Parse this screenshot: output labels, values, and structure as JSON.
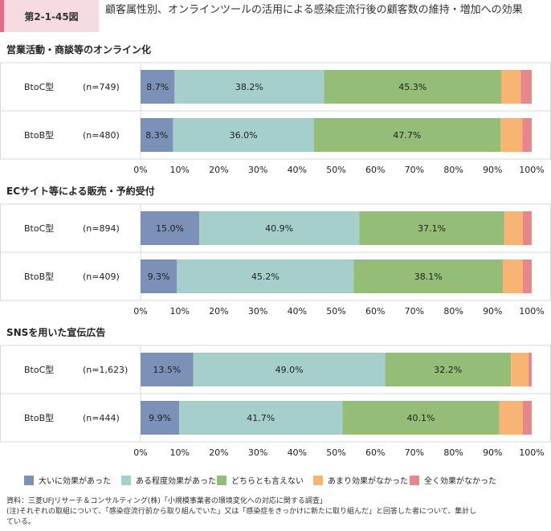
{
  "header": {
    "figure_no": "第2-1-45図",
    "title": "顧客属性別、オンラインツールの活用による感染症流行後の顧客数の維持・増加への効果"
  },
  "colors": [
    "#7b91b8",
    "#a6cfcb",
    "#94bd78",
    "#f7b473",
    "#e7868b"
  ],
  "chart_data": {
    "type": "bar",
    "orientation": "horizontal-stacked-100",
    "xlim": [
      0,
      100
    ],
    "xticks": [
      "0%",
      "10%",
      "20%",
      "30%",
      "40%",
      "50%",
      "60%",
      "70%",
      "80%",
      "90%",
      "100%"
    ],
    "legend": [
      "大いに効果があった",
      "ある程度効果があった",
      "どちらとも言えない",
      "あまり効果がなかった",
      "全く効果がなかった"
    ],
    "panels": [
      {
        "title": "営業活動・商談等のオンライン化",
        "rows": [
          {
            "label": "BtoC型",
            "n": "(n=749)",
            "values": [
              8.7,
              38.2,
              45.3,
              5.0,
              2.8
            ]
          },
          {
            "label": "BtoB型",
            "n": "(n=480)",
            "values": [
              8.3,
              36.0,
              47.7,
              5.6,
              2.4
            ]
          }
        ]
      },
      {
        "title": "ECサイト等による販売・予約受付",
        "rows": [
          {
            "label": "BtoC型",
            "n": "(n=894)",
            "values": [
              15.0,
              40.9,
              37.1,
              4.7,
              2.3
            ]
          },
          {
            "label": "BtoB型",
            "n": "(n=409)",
            "values": [
              9.3,
              45.2,
              38.1,
              5.1,
              2.3
            ]
          }
        ]
      },
      {
        "title": "SNSを用いた宣伝広告",
        "rows": [
          {
            "label": "BtoC型",
            "n": "(n=1,623)",
            "values": [
              13.5,
              49.0,
              32.2,
              4.5,
              0.8
            ]
          },
          {
            "label": "BtoB型",
            "n": "(n=444)",
            "values": [
              9.9,
              41.7,
              40.1,
              6.0,
              2.3
            ]
          }
        ]
      }
    ]
  },
  "footnotes": {
    "source": "資料：三菱UFJリサーチ＆コンサルティング(株)「小規模事業者の環境変化への対応に関する調査」",
    "note_line1": "(注)それぞれの取組について、「感染症流行前から取り組んでいた」又は「感染症をきっかけに新たに取り組んだ」と回答した者について、集計し",
    "note_line2": "ている。"
  }
}
